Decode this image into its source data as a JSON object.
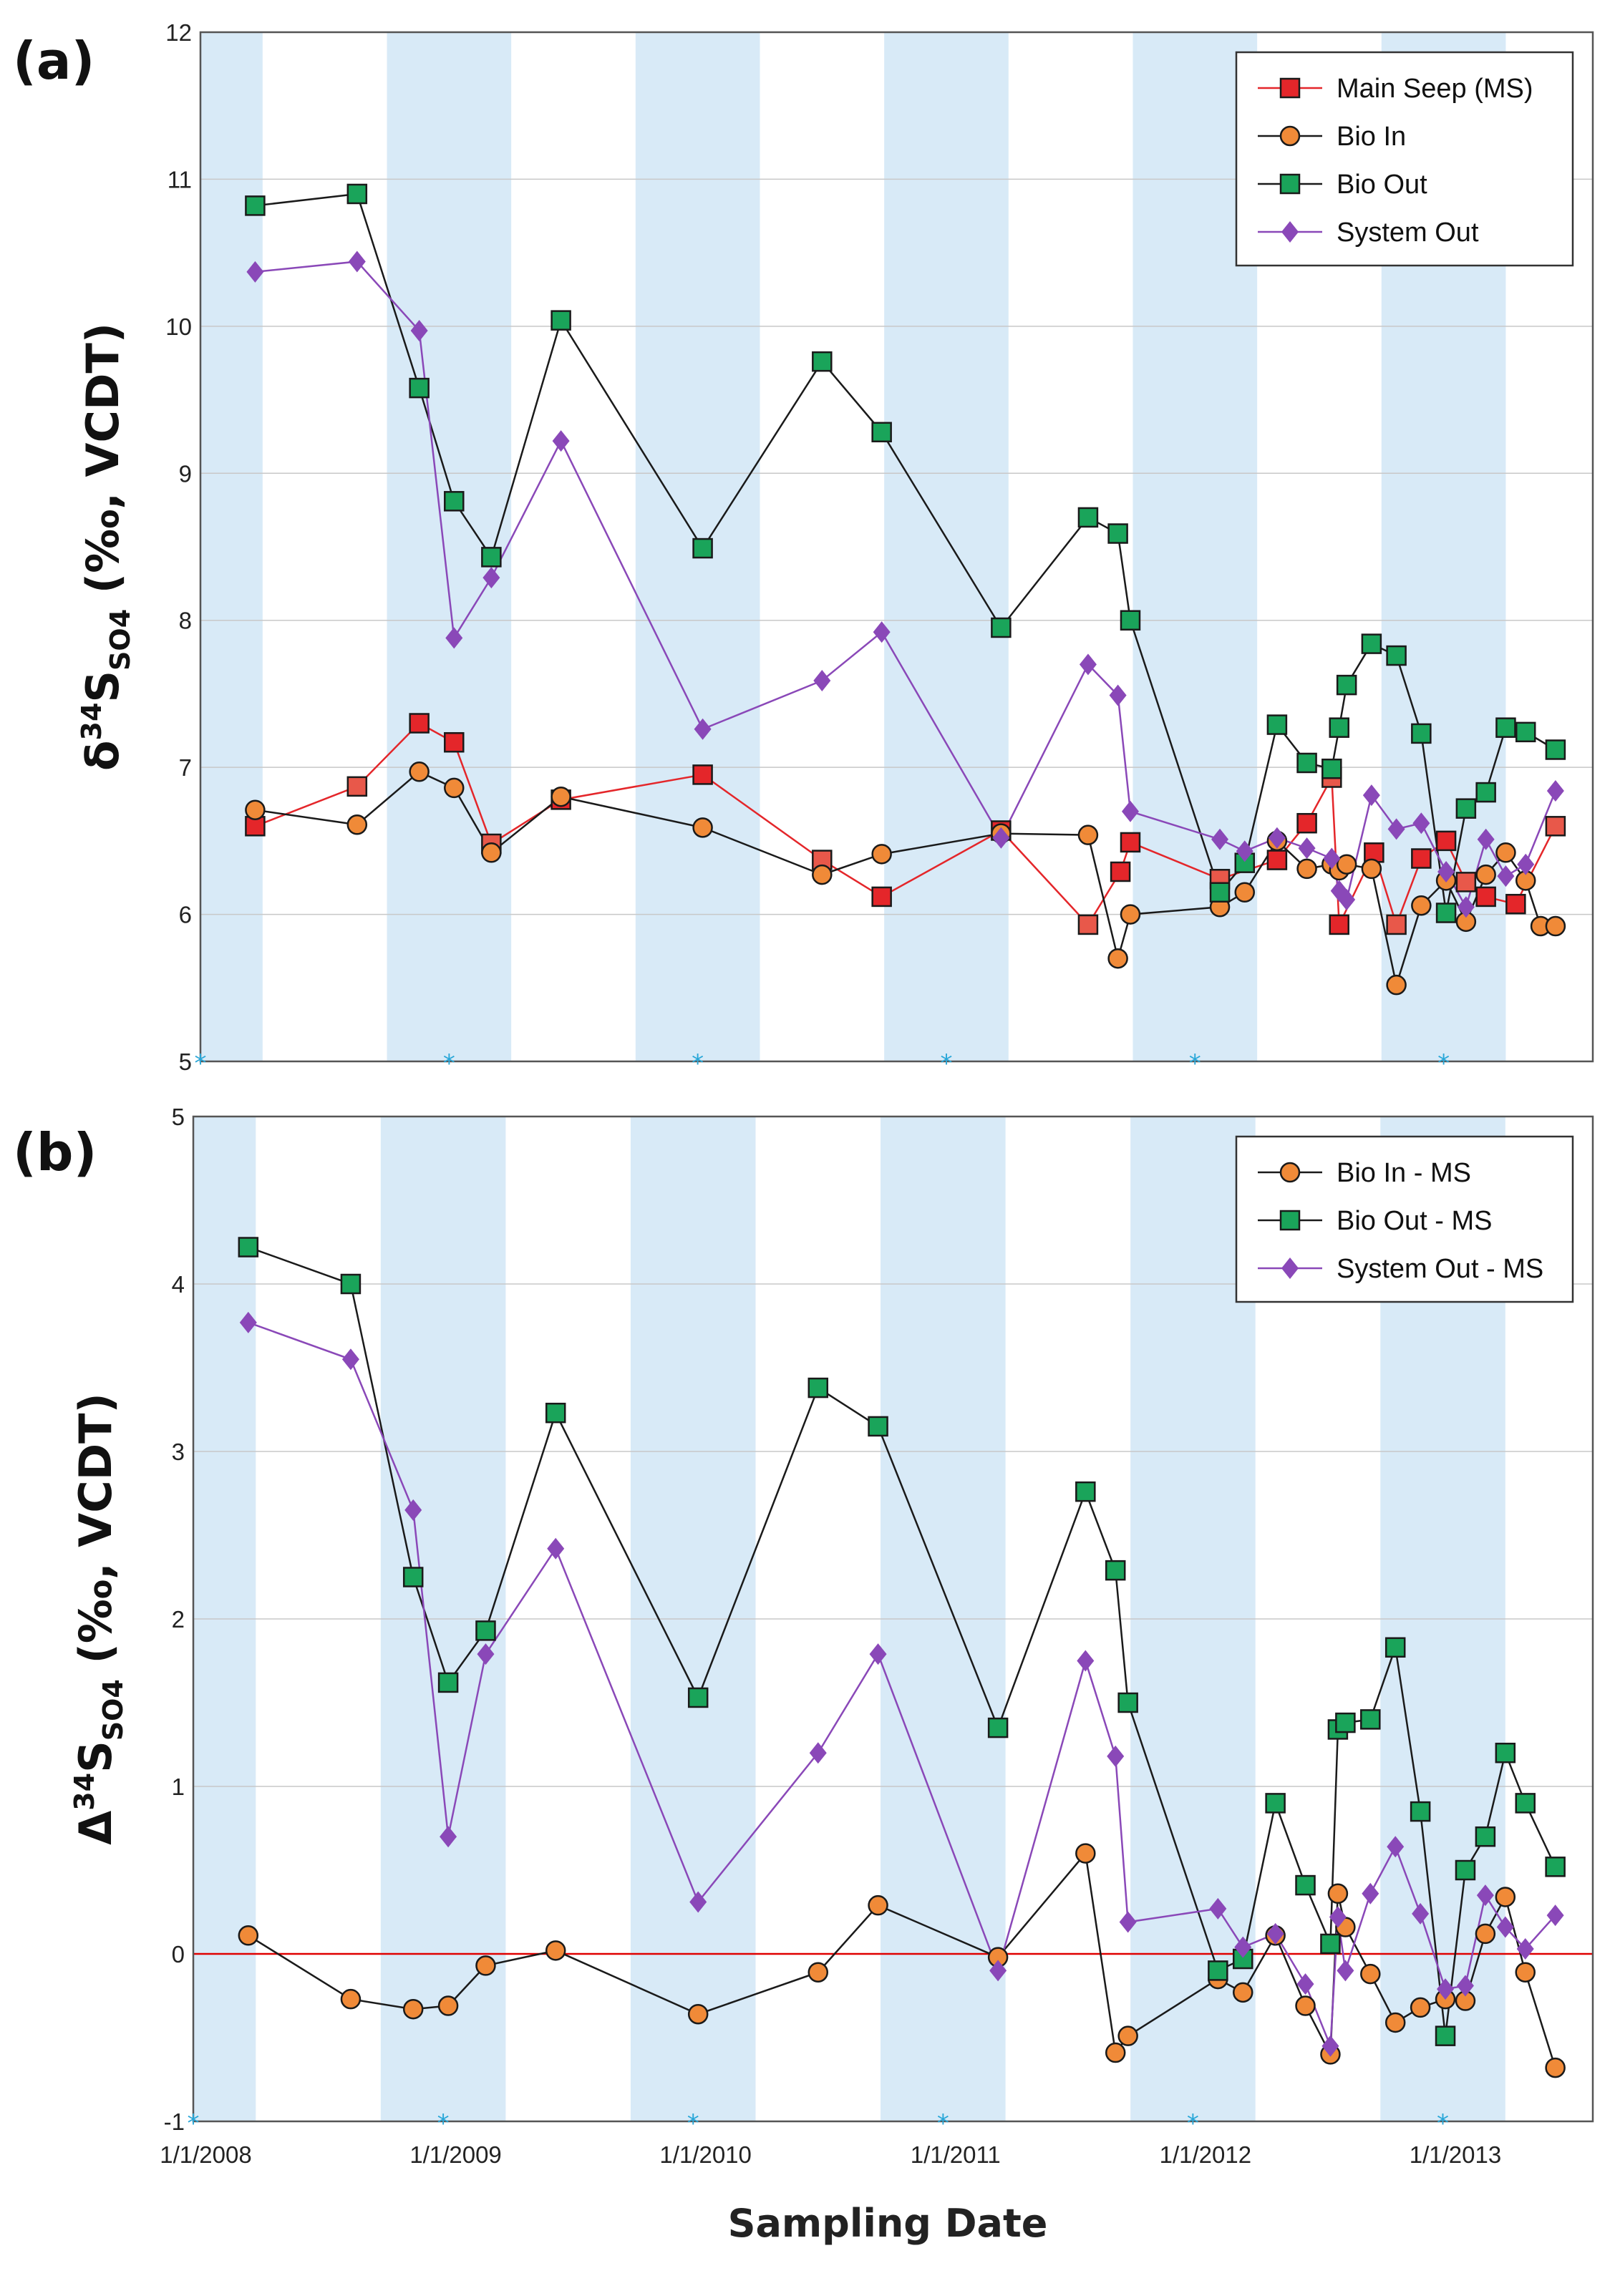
{
  "figure": {
    "panel_a_label": "(a)",
    "panel_b_label": "(b)",
    "x_axis_title": "Sampling Date"
  },
  "colors": {
    "shade": "#d8eaf7",
    "grid": "#c8c8c8",
    "zero_line": "#e00000",
    "main_seep": "#e4262a",
    "main_seep_light": "#e8584a",
    "bio_in": "#f08a38",
    "bio_out": "#1aa45a",
    "system_out": "#8a48b8",
    "star": "#29a7d8"
  },
  "chart_data": [
    {
      "type": "line",
      "panel": "(a)",
      "ylabel_delta": "δ",
      "ylabel_sup": "34",
      "ylabel_s": "S",
      "ylabel_sub": "SO4",
      "ylabel_units": "(‰, VCDT)",
      "ylim": [
        5,
        12
      ],
      "yticks": [
        "5",
        "6",
        "7",
        "8",
        "9",
        "10",
        "11",
        "12"
      ],
      "xlim": [
        2007.95,
        2013.55
      ],
      "grid": true,
      "legend_position": "top-right",
      "legend": [
        "Main Seep (MS)",
        "Bio In",
        "Bio Out",
        "System Out"
      ],
      "shaded_bands": [
        [
          2007.95,
          2008.2
        ],
        [
          2008.7,
          2009.2
        ],
        [
          2009.7,
          2010.2
        ],
        [
          2010.7,
          2011.2
        ],
        [
          2011.7,
          2012.2
        ],
        [
          2012.7,
          2013.2
        ]
      ],
      "star_markers_x": [
        2007.95,
        2008.95,
        2009.95,
        2010.95,
        2011.95,
        2012.95
      ],
      "series": [
        {
          "name": "Main Seep (MS)",
          "marker": "square",
          "color_key": "main_seep",
          "x": [
            2008.17,
            2008.58,
            2008.83,
            2008.97,
            2009.12,
            2009.4,
            2009.97,
            2010.45,
            2010.69,
            2011.17,
            2011.52,
            2011.65,
            2011.69,
            2012.05,
            2012.28,
            2012.4,
            2012.5,
            2012.53,
            2012.67,
            2012.76,
            2012.86,
            2012.96,
            2013.04,
            2013.12,
            2013.24,
            2013.4
          ],
          "y": [
            6.6,
            6.87,
            7.3,
            7.17,
            6.48,
            6.78,
            6.95,
            6.37,
            6.12,
            6.57,
            5.93,
            6.29,
            6.49,
            6.24,
            6.37,
            6.62,
            6.93,
            5.93,
            6.42,
            5.93,
            6.38,
            6.5,
            6.22,
            6.12,
            6.07,
            6.6
          ]
        },
        {
          "name": "Bio In",
          "marker": "circle",
          "color_key": "bio_in",
          "x": [
            2008.17,
            2008.58,
            2008.83,
            2008.97,
            2009.12,
            2009.4,
            2009.97,
            2010.45,
            2010.69,
            2011.17,
            2011.52,
            2011.64,
            2011.69,
            2012.05,
            2012.15,
            2012.28,
            2012.4,
            2012.5,
            2012.53,
            2012.56,
            2012.66,
            2012.76,
            2012.86,
            2012.96,
            2013.04,
            2013.12,
            2013.2,
            2013.28,
            2013.34,
            2013.4
          ],
          "y": [
            6.71,
            6.61,
            6.97,
            6.86,
            6.42,
            6.8,
            6.59,
            6.27,
            6.41,
            6.55,
            6.54,
            5.7,
            6.0,
            6.05,
            6.15,
            6.5,
            6.31,
            6.34,
            6.3,
            6.34,
            6.31,
            5.52,
            6.06,
            6.23,
            5.95,
            6.27,
            6.42,
            6.23,
            5.92,
            5.92
          ]
        },
        {
          "name": "Bio Out",
          "marker": "square",
          "color_key": "bio_out",
          "x": [
            2008.17,
            2008.58,
            2008.83,
            2008.97,
            2009.12,
            2009.4,
            2009.97,
            2010.45,
            2010.69,
            2011.17,
            2011.52,
            2011.64,
            2011.69,
            2012.05,
            2012.15,
            2012.28,
            2012.4,
            2012.5,
            2012.53,
            2012.56,
            2012.66,
            2012.76,
            2012.86,
            2012.96,
            2013.04,
            2013.12,
            2013.2,
            2013.28,
            2013.4
          ],
          "y": [
            10.82,
            10.9,
            9.58,
            8.81,
            8.43,
            10.04,
            8.49,
            9.76,
            9.28,
            7.95,
            8.7,
            8.59,
            8.0,
            6.15,
            6.35,
            7.29,
            7.03,
            6.99,
            7.27,
            7.56,
            7.84,
            7.76,
            7.23,
            6.01,
            6.72,
            6.83,
            7.27,
            7.24,
            7.12
          ]
        },
        {
          "name": "System Out",
          "marker": "diamond",
          "color_key": "system_out",
          "x": [
            2008.17,
            2008.58,
            2008.83,
            2008.97,
            2009.12,
            2009.4,
            2009.97,
            2010.45,
            2010.69,
            2011.17,
            2011.52,
            2011.64,
            2011.69,
            2012.05,
            2012.15,
            2012.28,
            2012.4,
            2012.5,
            2012.53,
            2012.56,
            2012.66,
            2012.76,
            2012.86,
            2012.96,
            2013.04,
            2013.12,
            2013.2,
            2013.28,
            2013.4
          ],
          "y": [
            10.37,
            10.44,
            9.97,
            7.88,
            8.29,
            9.22,
            7.26,
            7.59,
            7.92,
            6.52,
            7.7,
            7.49,
            6.7,
            6.51,
            6.43,
            6.52,
            6.45,
            6.38,
            6.16,
            6.1,
            6.81,
            6.58,
            6.62,
            6.29,
            6.05,
            6.51,
            6.26,
            6.34,
            6.84
          ]
        }
      ]
    },
    {
      "type": "line",
      "panel": "(b)",
      "ylabel_delta": "Δ",
      "ylabel_sup": "34",
      "ylabel_s": "S",
      "ylabel_sub": "SO4",
      "ylabel_units": "(‰, VCDT)",
      "ylim": [
        -1,
        5
      ],
      "yticks": [
        "-1",
        "0",
        "1",
        "2",
        "3",
        "4",
        "5"
      ],
      "xlim": [
        2007.95,
        2013.55
      ],
      "xtick_values": [
        2008.0,
        2009.0,
        2010.0,
        2011.0,
        2012.0,
        2013.0
      ],
      "xtick_labels": [
        "1/1/2008",
        "1/1/2009",
        "1/1/2010",
        "1/1/2011",
        "1/1/2012",
        "1/1/2013"
      ],
      "grid": true,
      "zero_line": 0,
      "legend_position": "top-right",
      "legend": [
        "Bio In - MS",
        "Bio Out - MS",
        "System Out - MS"
      ],
      "shaded_bands": [
        [
          2007.95,
          2008.2
        ],
        [
          2008.7,
          2009.2
        ],
        [
          2009.7,
          2010.2
        ],
        [
          2010.7,
          2011.2
        ],
        [
          2011.7,
          2012.2
        ],
        [
          2012.7,
          2013.2
        ]
      ],
      "star_markers_x": [
        2007.95,
        2008.95,
        2009.95,
        2010.95,
        2011.95,
        2012.95
      ],
      "series": [
        {
          "name": "Bio In - MS",
          "marker": "circle",
          "color_key": "bio_in",
          "x": [
            2008.17,
            2008.58,
            2008.83,
            2008.97,
            2009.12,
            2009.4,
            2009.97,
            2010.45,
            2010.69,
            2011.17,
            2011.52,
            2011.64,
            2011.69,
            2012.05,
            2012.15,
            2012.28,
            2012.4,
            2012.5,
            2012.53,
            2012.56,
            2012.66,
            2012.76,
            2012.86,
            2012.96,
            2013.04,
            2013.12,
            2013.2,
            2013.28,
            2013.4
          ],
          "y": [
            0.11,
            -0.27,
            -0.33,
            -0.31,
            -0.07,
            0.02,
            -0.36,
            -0.11,
            0.29,
            -0.02,
            0.6,
            -0.59,
            -0.49,
            -0.15,
            -0.23,
            0.11,
            -0.31,
            -0.6,
            0.36,
            0.16,
            -0.12,
            -0.41,
            -0.32,
            -0.27,
            -0.28,
            0.12,
            0.34,
            -0.11,
            -0.68
          ]
        },
        {
          "name": "Bio Out - MS",
          "marker": "square",
          "color_key": "bio_out",
          "x": [
            2008.17,
            2008.58,
            2008.83,
            2008.97,
            2009.12,
            2009.4,
            2009.97,
            2010.45,
            2010.69,
            2011.17,
            2011.52,
            2011.64,
            2011.69,
            2012.05,
            2012.15,
            2012.28,
            2012.4,
            2012.5,
            2012.53,
            2012.56,
            2012.66,
            2012.76,
            2012.86,
            2012.96,
            2013.04,
            2013.12,
            2013.2,
            2013.28,
            2013.4
          ],
          "y": [
            4.22,
            4.0,
            2.25,
            1.62,
            1.93,
            3.23,
            1.53,
            3.38,
            3.15,
            1.35,
            2.76,
            2.29,
            1.5,
            -0.1,
            -0.03,
            0.9,
            0.41,
            0.06,
            1.34,
            1.38,
            1.4,
            1.83,
            0.85,
            -0.49,
            0.5,
            0.7,
            1.2,
            0.9,
            0.52
          ]
        },
        {
          "name": "System Out - MS",
          "marker": "diamond",
          "color_key": "system_out",
          "x": [
            2008.17,
            2008.58,
            2008.83,
            2008.97,
            2009.12,
            2009.4,
            2009.97,
            2010.45,
            2010.69,
            2011.17,
            2011.52,
            2011.64,
            2011.69,
            2012.05,
            2012.15,
            2012.28,
            2012.4,
            2012.5,
            2012.53,
            2012.56,
            2012.66,
            2012.76,
            2012.86,
            2012.96,
            2013.04,
            2013.12,
            2013.2,
            2013.28,
            2013.4
          ],
          "y": [
            3.77,
            3.55,
            2.65,
            0.7,
            1.79,
            2.42,
            0.31,
            1.2,
            1.79,
            -0.1,
            1.75,
            1.18,
            0.19,
            0.27,
            0.04,
            0.12,
            -0.18,
            -0.55,
            0.22,
            -0.1,
            0.36,
            0.64,
            0.24,
            -0.21,
            -0.19,
            0.35,
            0.16,
            0.03,
            0.23
          ]
        }
      ]
    }
  ]
}
